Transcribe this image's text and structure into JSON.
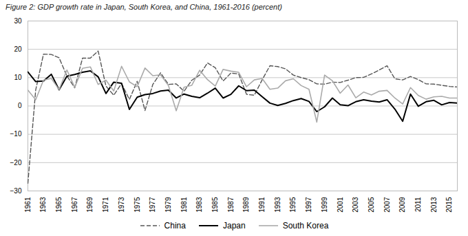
{
  "chart_data": {
    "type": "line",
    "title": "Figure 2: GDP growth rate in Japan, South Korea, and China, 1961-2016 (percent)",
    "x": [
      1961,
      1962,
      1963,
      1964,
      1965,
      1966,
      1967,
      1968,
      1969,
      1970,
      1971,
      1972,
      1973,
      1974,
      1975,
      1976,
      1977,
      1978,
      1979,
      1980,
      1981,
      1982,
      1983,
      1984,
      1985,
      1986,
      1987,
      1988,
      1989,
      1990,
      1991,
      1992,
      1993,
      1994,
      1995,
      1996,
      1997,
      1998,
      1999,
      2000,
      2001,
      2002,
      2003,
      2004,
      2005,
      2006,
      2007,
      2008,
      2009,
      2010,
      2011,
      2012,
      2013,
      2014,
      2015,
      2016
    ],
    "series": [
      {
        "name": "China",
        "color": "#555555",
        "line_style": "dashed",
        "values": [
          -27.3,
          5.6,
          18.3,
          18.2,
          17.0,
          10.6,
          6.4,
          16.9,
          16.9,
          19.4,
          7.0,
          3.8,
          7.9,
          2.3,
          8.7,
          -1.6,
          7.6,
          11.7,
          7.6,
          7.8,
          5.2,
          9.1,
          10.9,
          15.2,
          13.5,
          8.8,
          11.6,
          11.3,
          4.1,
          3.8,
          9.2,
          14.2,
          13.9,
          13.1,
          10.9,
          10.0,
          9.3,
          7.8,
          7.7,
          8.4,
          8.3,
          9.1,
          10.0,
          10.1,
          11.3,
          12.7,
          14.2,
          9.6,
          9.2,
          10.4,
          9.3,
          7.8,
          7.7,
          7.3,
          6.9,
          6.7
        ]
      },
      {
        "name": "Japan",
        "color": "#000000",
        "line_style": "solid",
        "values": [
          12.0,
          8.6,
          8.8,
          11.2,
          5.7,
          10.5,
          11.1,
          11.9,
          12.4,
          10.3,
          4.4,
          8.4,
          8.0,
          -1.2,
          3.1,
          4.0,
          4.4,
          5.3,
          5.6,
          2.8,
          4.2,
          3.4,
          2.9,
          4.5,
          6.3,
          2.8,
          4.1,
          7.1,
          5.4,
          5.6,
          3.3,
          1.0,
          0.2,
          0.9,
          1.9,
          2.6,
          1.6,
          -2.0,
          -0.3,
          2.8,
          0.4,
          0.1,
          1.5,
          2.2,
          1.7,
          1.4,
          2.2,
          -1.1,
          -5.4,
          4.2,
          -0.1,
          1.5,
          2.0,
          0.4,
          1.2,
          1.0
        ]
      },
      {
        "name": "South Korea",
        "color": "#aaaaaa",
        "line_style": "solid",
        "values": [
          5.6,
          2.2,
          9.1,
          9.7,
          5.8,
          12.7,
          6.6,
          13.3,
          13.8,
          7.6,
          9.1,
          5.3,
          14.0,
          8.5,
          6.8,
          13.4,
          10.7,
          11.0,
          7.2,
          -1.7,
          6.6,
          7.3,
          12.6,
          9.3,
          7.0,
          12.9,
          12.3,
          11.9,
          6.8,
          9.2,
          9.7,
          5.9,
          6.3,
          8.9,
          9.6,
          7.2,
          5.9,
          -5.7,
          10.9,
          8.9,
          4.5,
          7.4,
          2.9,
          4.9,
          3.9,
          5.2,
          5.5,
          2.8,
          0.7,
          6.5,
          3.7,
          2.4,
          3.2,
          3.4,
          2.8,
          2.8
        ]
      }
    ],
    "xlim": [
      1961,
      2016
    ],
    "xticks": [
      1961,
      1963,
      1965,
      1967,
      1969,
      1971,
      1973,
      1975,
      1977,
      1979,
      1981,
      1983,
      1985,
      1987,
      1989,
      1991,
      1993,
      1995,
      1997,
      1999,
      2001,
      2003,
      2005,
      2007,
      2009,
      2011,
      2013,
      2015
    ],
    "ylim": [
      -30,
      30
    ],
    "yticks": [
      -30,
      -20,
      -10,
      0,
      10,
      20,
      30
    ],
    "grid": true,
    "legend": "bottom"
  }
}
